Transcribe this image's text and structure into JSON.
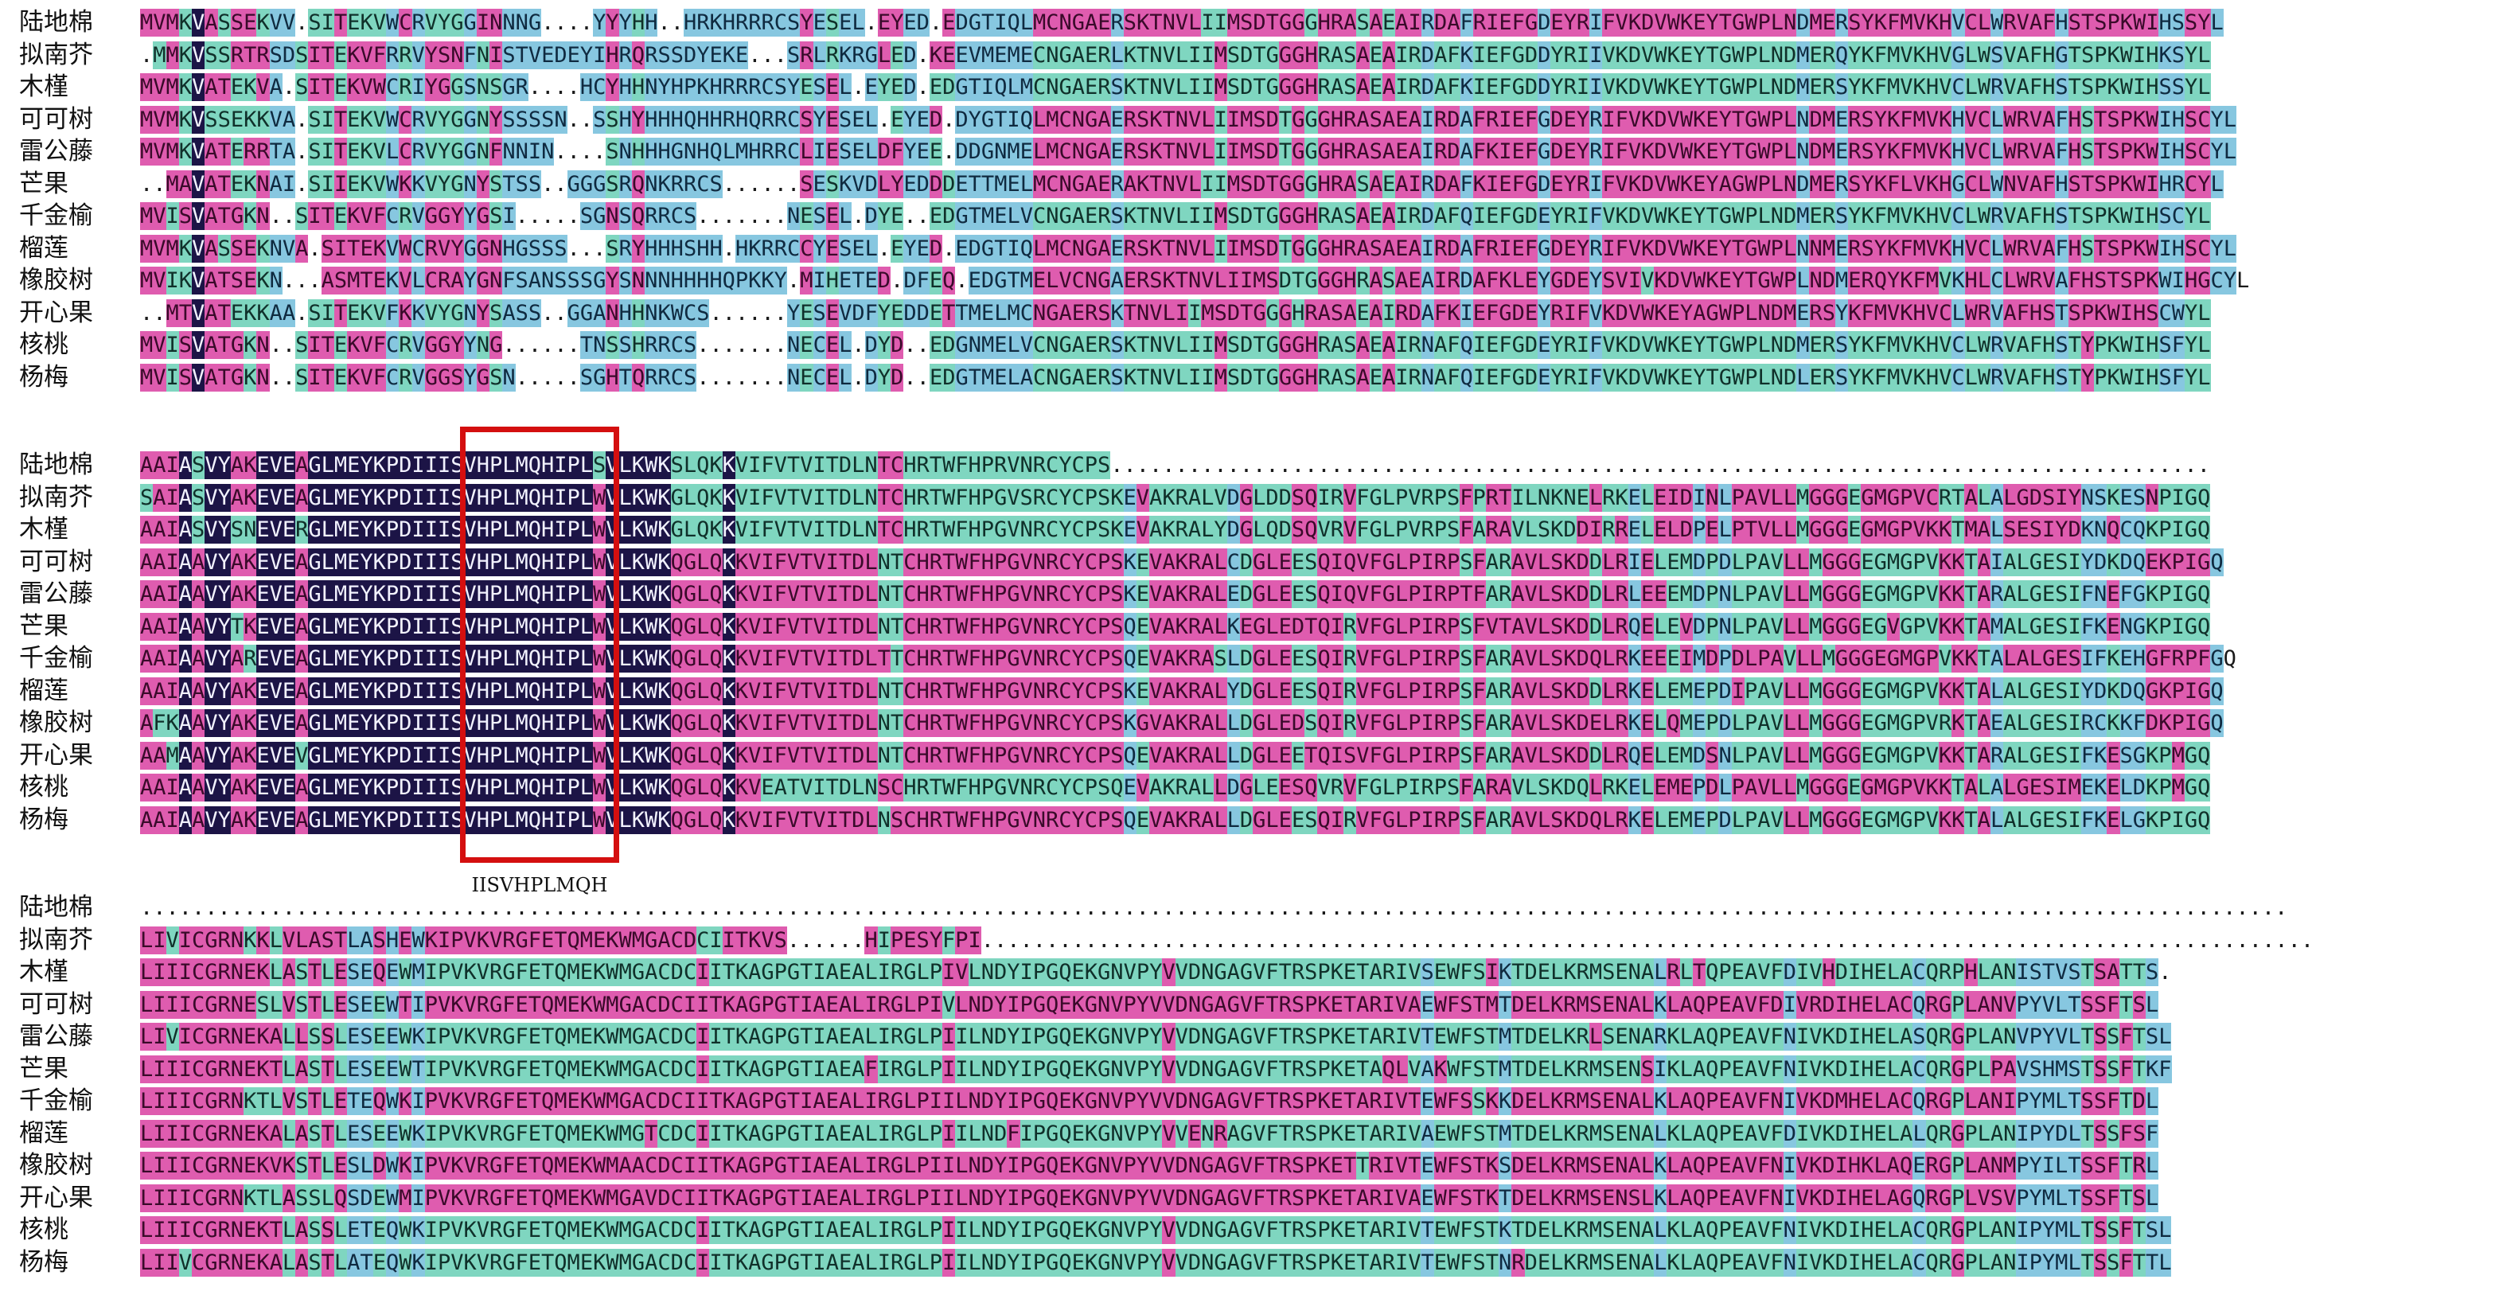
{
  "figure": {
    "motif_label": "IISVHPLMQH",
    "highlight_color": "#d40f0f",
    "colors": {
      "identical": "#1c1446",
      "high_similarity": "#df5caf",
      "medium_similarity": "#7fd6c0",
      "low_similarity": "#87c7e0",
      "background": "#ffffff"
    }
  },
  "alignment": {
    "blocks": [
      {
        "name": "block-1",
        "rows": [
          {
            "species": "陆地棉",
            "sequence": "MVMKVASSEKVV.SITEKVWCRVYGGINNNG....YYYHH..HRKHRRRCSYESEL.EYED.EDGTIQLMCNGAERSKTNVLIIMSDTGGGHRASAEAIRDAFRIEFGDEYRIFVKDVWKEYTGWPLNDMERSYKFMVKHVCLWRVAFHSTSPKWIHSSYL"
          },
          {
            "species": "拟南芥",
            "sequence": ".MMKVSSRTRSDSITEKVFRRVYSNFNISTVEDEYIHRQRSSDYEKE...SRLRKRGLED.KEEVMEMECNGAERLKTNVLIIMSDTGGGHRASAEAIRDAFKIEFGDDYRIIVKDVWKEYTGWPLNDMERQYKFMVKHVGLWSVAFHGTSPKWIHKSYL"
          },
          {
            "species": "木槿",
            "sequence": "MVMKVATEKVA.SITEKVWCRIYGGSNSGR....HCYHHNYHPKHRRRCSYESEL.EYED.EDGTIQLMCNGAERSKTNVLIIMSDTGGGHRASAEAIRDAFKIEFGDDYRIIVKDVWKEYTGWPLNDMERSYKFMVKHVCLWRVAFHSTSPKWIHSSYL"
          },
          {
            "species": "可可树",
            "sequence": "MVMKVSSEKKVA.SITEKVWCRVYGGNYSSSSN..SSHYHHHQHHRHQRRCSYESEL.EYED.DYGTIQLMCNGAERSKTNVLIIMSDTGGGHRASAEAIRDAFRIEFGDEYRIFVKDVWKEYTGWPLNDMERSYKFMVKHVCLWRVAFHSTSPKWIHSCYL"
          },
          {
            "species": "雷公藤",
            "sequence": "MVMKVATERRTA.SITEKVLCRVYGGNFNNIN....SNHHHGNHQLMHRRCLIESELDFYEE.DDGNMELMCNGAERSKTNVLIIMSDTGGGHRASAEAIRDAFKIEFGDEYRIFVKDVWKEYTGWPLNDMERSYKFMVKHVCLWRVAFHSTSPKWIHSCYL"
          },
          {
            "species": "芒果",
            "sequence": "..MAVATEKNAI.SIIEKVWKKVYGNYSTSS..GGGSRQNKRRCS......SESKVDLYEDDDETTMELMCNGAERAKTNVLIIMSDTGGGHRASAEAIRDAFKIEFGDEYRIFVKDVWKEYAGWPLNDMERSYKFLVKHGCLWNVAFHSTSPKWIHRCYL"
          },
          {
            "species": "千金榆",
            "sequence": "MVISVATGKN..SITEKVFCRVGGYYGSI.....SGNSQRRCS.......NESEL.DYE..EDGTMELVCNGAERSKTNVLIIMSDTGGGHRASAEAIRDAFQIEFGDEYRIFVKDVWKEYTGWPLNDMERSYKFMVKHVCLWRVAFHSTSPKWIHSCYL"
          },
          {
            "species": "榴莲",
            "sequence": "MVMKVASSEKNVA.SITEKVWCRVYGGNHGSSS...SRYHHHSHH.HKRRCCYESEL.EYED.EDGTIQLMCNGAERSKTNVLIIMSDTGGGHRASAEAIRDAFRIEFGDEYRIFVKDVWKEYTGWPLNNMERSYKFMVKHVCLWRVAFHSTSPKWIHSCYL"
          },
          {
            "species": "橡胶树",
            "sequence": "MVIKVATSEKN...ASMTEKVLCRAYGNFSANSSSGYSNNNHHHHQPKKY.MIHETED.DFEQ.EDGTMELVCNGAERSKTNVLIIMSDTGGGHRASAEAIRDAFKLEYGDEYSVIVKDVWKEYTGWPLNDMERQYKFMVKHLCLWRVAFHSTSPKWIHGCYL"
          },
          {
            "species": "开心果",
            "sequence": "..MTVATEKKAA.SITEKVFKKVYGNYSASS..GGANHHNKWCS......YESEVDFYEDDETTMELMCNGAERSKTNVLIIMSDTGGGHRASAEAIRDAFKIEFGDEYRIFVKDVWKEYAGWPLNDMERSYKFMVKHVCLWRVAFHSTSPKWIHSCWYL"
          },
          {
            "species": "核桃",
            "sequence": "MVISVATGKN..SITEKVFCRVGGYYNG......TNSSHRRCS.......NECEL.DYD..EDGNMELVCNGAERSKTNVLIIMSDTGGGHRASAEAIRNAFQIEFGDEYRIFVKDVWKEYTGWPLNDMERSYKFMVKHVCLWRVAFHSTYPKWIHSFYL"
          },
          {
            "species": "杨梅",
            "sequence": "MVISVATGKN..SITEKVFCRVGGSYGSN.....SGHTQRRCS.......NECEL.DYD..EDGTMELACNGAERSKTNVLIIMSDTGGGHRASAEAIRNAFQIEFGDEYRIFVKDVWKEYTGWPLNDLERSYKFMVKHVCLWRVAFHSTYPKWIHSFYL"
          }
        ]
      },
      {
        "name": "block-2",
        "rows": [
          {
            "species": "陆地棉",
            "sequence": "AAIASVYAKEVEAGLMEYKPDIIISVHPLMQHIPLSVLKWKSLQKKVIFVTVITDLNTCHRTWFHPRVNRCYCPS....................................................................................."
          },
          {
            "species": "拟南芥",
            "sequence": "SAIASVYAKEVEAGLMEYKPDIIISVHPLMQHIPLWVLKWKGLQKKVIFVTVITDLNTCHRTWFHPGVSRCYCPSKEVAKRALVDGLDDSQIRVFGLPVRPSFPRTILNKNELRKELEIDINLPAVLLMGGGEGMGPVCRTALALGDSIYNSKESNPIGQ"
          },
          {
            "species": "木槿",
            "sequence": "AAIASVYSNEVERGLMEYKPDIIISVHPLMQHIPLWVLKWKGLQKKVIFVTVITDLNTCHRTWFHPGVNRCYCPSKEVAKRALYDGLQDSQVRVFGLPVRPSFARAVLSKDDIRRELELDPELPTVLLMGGGEGMGPVKKTMALSESIYDKNQCQKPIGQ"
          },
          {
            "species": "可可树",
            "sequence": "AAIAAVYAKEVEAGLMEYKPDIIISVHPLMQHIPLWVLKWKQGLQKKVIFVTVITDLNTCHRTWFHPGVNRCYCPSKEVAKRALCDGLEESQIQVFGLPIRPSFARAVLSKDDLRIELEMDPDLPAVLLMGGGEGMGPVKKTAIALGESIYDKDQEKPIGQ"
          },
          {
            "species": "雷公藤",
            "sequence": "AAIAAVYAKEVEAGLMEYKPDIIISVHPLMQHIPLWVLKWKQGLQKKVIFVTVITDLNTCHRTWFHPGVNRCYCPSKEVAKRALEDGLEESQIQVFGLPIRPTFARAVLSKDDLRLEEEMDPNLPAVLLMGGGEGMGPVKKTARALGESIFNEFGKPIGQ"
          },
          {
            "species": "芒果",
            "sequence": "AAIAAVYTKEVEAGLMEYKPDIIISVHPLMQHIPLWVLKWKQGLQKKVIFVTVITDLNTCHRTWFHPGVNRCYCPSQEVAKRALKEGLEDTQIRVFGLPIRPSFVTAVLSKDDLRQELEVDPNLPAVLLMGGGEGVGPVKKTAMALGESIFKENGKPIGQ"
          },
          {
            "species": "千金榆",
            "sequence": "AAIAAVYAREVEAGLMEYKPDIIISVHPLMQHIPLWVLKWKQGLQKKVIFVTVITDLTTCHRTWFHPGVNRCYCPSQEVAKRASLDGLEESQIRVFGLPIRPSFARAVLSKDQLRKEEEIMDPDLPAVLLMGGGEGMGPVKKTALALGESIFKEHGFRPFGQ"
          },
          {
            "species": "榴莲",
            "sequence": "AAIAAVYAKEVEAGLMEYKPDIIISVHPLMQHIPLWVLKWKQGLQKKVIFVTVITDLNTCHRTWFHPGVNRCYCPSKEVAKRALYDGLEESQIRVFGLPIRPSFARAVLSKDDLRKELEMEPDIPAVLLMGGGEGMGPVKKTALALGESIYDKDQGKPIGQ"
          },
          {
            "species": "橡胶树",
            "sequence": "AFKAAVYAKEVEAGLMEYKPDIIISVHPLMQHIPLWVLKWKQGLQKKVIFVTVITDLNTCHRTWFHPGVNRCYCPSKGVAKRALLDGLEDSQIRVFGLPIRPSFARAVLSKDELRKELQMEPDLPAVLLMGGGEGMGPVRKTAEALGESIRCKKFDKPIGQ"
          },
          {
            "species": "开心果",
            "sequence": "AAMAAVYAKEVEVGLMEYKPDIIISVHPLMQHIPLWVLKWKQGLQKKVIFVTVITDLNTCHRTWFHPGVNRCYCPSQEVAKRALLDGLEETQISVFGLPIRPSFARAVLSKDDLRQELEMDSNLPAVLLMGGGEGMGPVKKTARALGESIFKESGKPMGQ"
          },
          {
            "species": "核桃",
            "sequence": "AAIAAVYAKEVEAGLMEYKPDIIISVHPLMQHIPLWVLKWKQGLQKKVEATVITDLNSCHRTWFHPGVNRCYCPSQEVAKRALLDGLEESQVRVFGLPIRPSFARAVLSKDQLRKELEMEPDLPAVLLMGGGEGMGPVKKTALALGESIMEKELDKPMGQ"
          },
          {
            "species": "杨梅",
            "sequence": "AAIAAVYAKEVEAGLMEYKPDIIISVHPLMQHIPLWVLKWKQGLQKKVIFVTVITDLNSCHRTWFHPGVNRCYCPSQEVAKRALLDGLEESQIRVFGLPIRPSFARAVLSKDQLRKELEMEPDLPAVLLMGGGEGMGPVKKTALALGESIFKELGKPIGQ"
          }
        ]
      },
      {
        "name": "block-3",
        "rows": [
          {
            "species": "陆地棉",
            "sequence": "......................................................................................................................................................................"
          },
          {
            "species": "拟南芥",
            "sequence": "LIVICGRNKKLVLASTLASHEWKIPVKVRGFETQMEKWMGACDCIITKVS......HIPESYFPI......................................................................................................."
          },
          {
            "species": "木槿",
            "sequence": "LIIICGRNEKLASTLESEQEWMIPVKVRGFETQMEKWMGACDCIITKAGPGTIAEALIRGLPIVLNDYIPGQEKGNVPYVVDNGAGVFTRSPKETARIVSEWFSIKTDELKRMSENALRLTQPEAVFDIVHDIHELACQRPHLANISTVSTSATTS."
          },
          {
            "species": "可可树",
            "sequence": "LIIICGRNESLVSTLESEEWTIPVKVRGFETQMEKWMGACDCIITKAGPGTIAEALIRGLPIVLNDYIPGQEKGNVPYVVDNGAGVFTRSPKETARIVAEWFSTMTDELKRMSENALKLAQPEAVFDIVRDIHELACQRGPLANVPYVLTSSFTSL"
          },
          {
            "species": "雷公藤",
            "sequence": "LIVICGRNEKALLSSLESEEWKIPVKVRGFETQMEKWMGACDCIITKAGPGTIAEALIRGLPIILNDYIPGQEKGNVPYVVDNGAGVFTRSPKETARIVTEWFSTMTDELKRLSENARKLAQPEAVFNIVKDIHELASQRGPLANVPYVLTSSFTSL"
          },
          {
            "species": "芒果",
            "sequence": "LIIICGRNEKTLASTLESEEWTIPVKVRGFETQMEKWMGACDCIITKAGPGTIAEAFIRGLPIILNDYIPGQEKGNVPYVVDNGAGVFTRSPKETAQLVAKWFSTMTDELKRMSENSIKLAQPEAVFNIVKDIHELACQRGPLPAVSHMSTSSFTKF"
          },
          {
            "species": "千金榆",
            "sequence": "LIIICGRNKTLVSTLETEQWKIPVKVRGFETQMEKWMGACDCIITKAGPGTIAEALIRGLPIILNDYIPGQEKGNVPYVVDNGAGVFTRSPKETARIVTEWFSSKKDELKRMSENALKLAQPEAVFNIVKDMHELACQRGPLANIPYMLTSSFTDL"
          },
          {
            "species": "榴莲",
            "sequence": "LIIICGRNEKALASTLESEEWKIPVKVRGFETQMEKWMGTCDCIITKAGPGTIAEALIRGLPIILNDFIPGQEKGNVPYVVENRAGVFTRSPKETARIVAEWFSTMTDELKRMSENALKLAQPEAVFDIVKDIHELALQRGPLANIPYDLTSSFSF"
          },
          {
            "species": "橡胶树",
            "sequence": "LIIICGRNEKVKSTLESLDWKIPVKVRGFETQMEKWMAACDCIITKAGPGTIAEALIRGLPIILNDYIPGQEKGNVPYVVDNGAGVFTRSPKETTRIVTEWFSTKSDELKRMSENALKLAQPEAVFNIVKDIHKLAQERGPLANMPYILTSSFTRL"
          },
          {
            "species": "开心果",
            "sequence": "LIIICGRNKTLASSLQSDEWMIPVKVRGFETQMEKWMGAVDCIITKAGPGTIAEALIRGLPIILNDYIPGQEKGNVPYVVDNGAGVFTRSPKETARIVAEWFSTKTDELKRMSENSLKLAQPEAVFNIVKDIHELAGQRGPLVSVPYMLTSSFTSL"
          },
          {
            "species": "核桃",
            "sequence": "LIIICGRNEKTLASSLETEQWKIPVKVRGFETQMEKWMGACDCIITKAGPGTIAEALIRGLPIILNDYIPGQEKGNVPYVVDNGAGVFTRSPKETARIVTEWFSTKTDELKRMSENALKLAQPEAVFNIVKDIHELACQRGPLANIPYMLTSSFTSL"
          },
          {
            "species": "杨梅",
            "sequence": "LIIVCGRNEKALASTLATEQWKIPVKVRGFETQMEKWMGACDCIITKAGPGTIAEALIRGLPIILNDYIPGQEKGNVPYVVDNGAGVFTRSPKETARIVTEWFSTNRDELKRMSENALKLAQPEAVFNIVKDIHELACQRGPLANIPYMLTSSFTTL"
          }
        ]
      }
    ]
  }
}
